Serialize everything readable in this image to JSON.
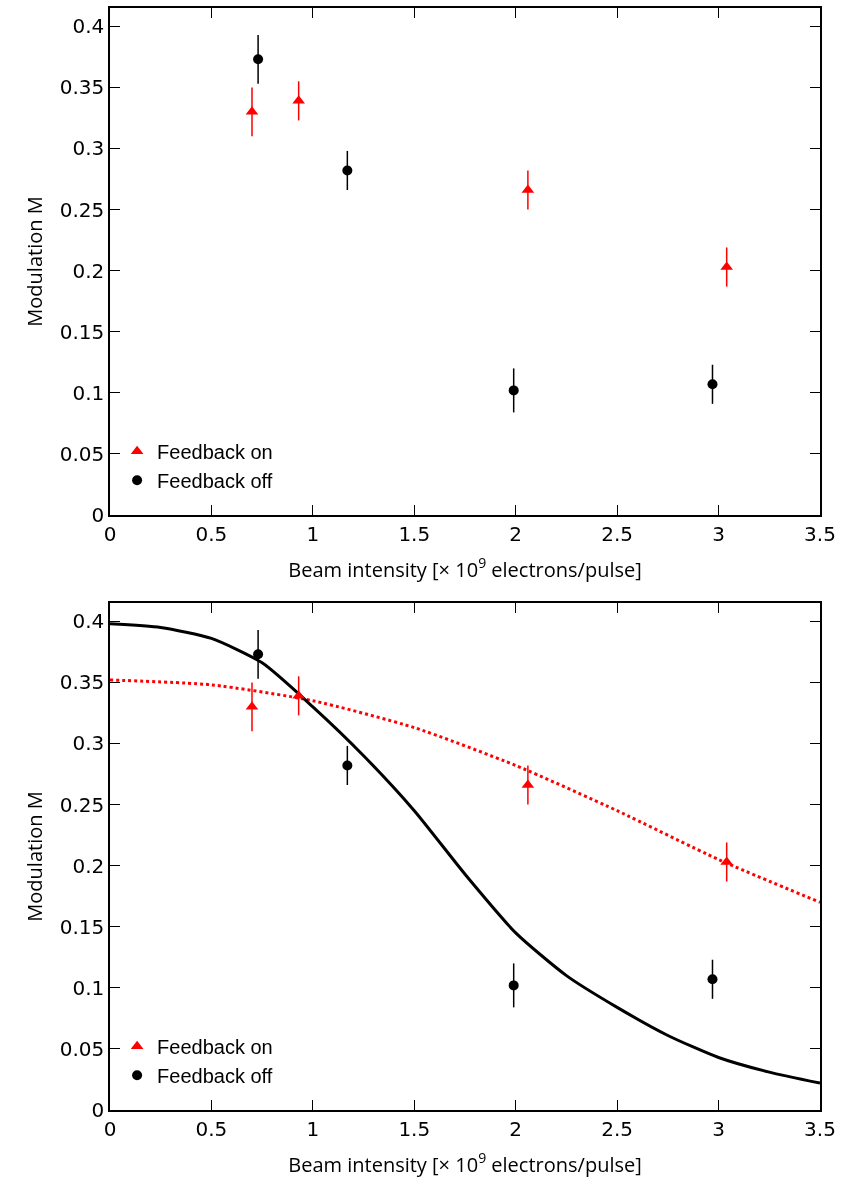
{
  "chart_data": [
    {
      "type": "scatter",
      "xlabel": "Beam intensity [× 10$^{9}$ electrons/pulse]",
      "ylabel": "Modulation M",
      "xlim": [
        0,
        3.5
      ],
      "xticks": [
        0,
        0.5,
        1,
        1.5,
        2,
        2.5,
        3,
        3.5
      ],
      "ylim": [
        0,
        0.415
      ],
      "yticks": [
        0,
        0.05,
        0.1,
        0.15,
        0.2,
        0.25,
        0.3,
        0.35,
        0.4
      ],
      "grid": false,
      "legend": "bottom left",
      "series": [
        {
          "name": "Feedback on",
          "color": "#ff0000",
          "marker": "triangle",
          "x": [
            0.7,
            0.93,
            2.06,
            3.04
          ],
          "values": [
            0.33,
            0.339,
            0.266,
            0.203
          ],
          "errors": [
            0.02,
            0.016,
            0.016,
            0.016
          ]
        },
        {
          "name": "Feedback off",
          "color": "#000000",
          "marker": "circle",
          "x": [
            0.73,
            1.17,
            1.99,
            2.97
          ],
          "values": [
            0.373,
            0.282,
            0.102,
            0.107
          ],
          "errors": [
            0.02,
            0.016,
            0.018,
            0.016
          ]
        }
      ]
    },
    {
      "type": "scatter",
      "xlabel": "Beam intensity [× 10$^{9}$ electrons/pulse]",
      "ylabel": "Modulation M",
      "xlim": [
        0,
        3.5
      ],
      "xticks": [
        0,
        0.5,
        1,
        1.5,
        2,
        2.5,
        3,
        3.5
      ],
      "ylim": [
        0,
        0.415
      ],
      "yticks": [
        0,
        0.05,
        0.1,
        0.15,
        0.2,
        0.25,
        0.3,
        0.35,
        0.4
      ],
      "grid": false,
      "legend": "bottom left",
      "series": [
        {
          "name": "Feedback on",
          "color": "#ff0000",
          "marker": "triangle",
          "x": [
            0.7,
            0.93,
            2.06,
            3.04
          ],
          "values": [
            0.33,
            0.339,
            0.266,
            0.203
          ],
          "errors": [
            0.02,
            0.016,
            0.016,
            0.016
          ]
        },
        {
          "name": "Feedback off",
          "color": "#000000",
          "marker": "circle",
          "x": [
            0.73,
            1.17,
            1.99,
            2.97
          ],
          "values": [
            0.373,
            0.282,
            0.102,
            0.107
          ],
          "errors": [
            0.02,
            0.016,
            0.018,
            0.016
          ]
        },
        {
          "type": "line",
          "color": "#ff0000",
          "line_style": "dotted",
          "x": [
            0,
            0.5,
            1,
            1.5,
            2,
            2.5,
            3,
            3.5
          ],
          "values": [
            0.352,
            0.348,
            0.335,
            0.313,
            0.282,
            0.245,
            0.205,
            0.17
          ]
        },
        {
          "type": "line",
          "color": "#000000",
          "line_style": "solid",
          "x": [
            0,
            0.25,
            0.5,
            0.75,
            1,
            1.25,
            1.5,
            1.75,
            2,
            2.25,
            2.5,
            2.75,
            3,
            3.25,
            3.5
          ],
          "values": [
            0.398,
            0.395,
            0.386,
            0.366,
            0.33,
            0.29,
            0.245,
            0.193,
            0.145,
            0.11,
            0.084,
            0.061,
            0.043,
            0.031,
            0.022
          ]
        }
      ]
    }
  ]
}
